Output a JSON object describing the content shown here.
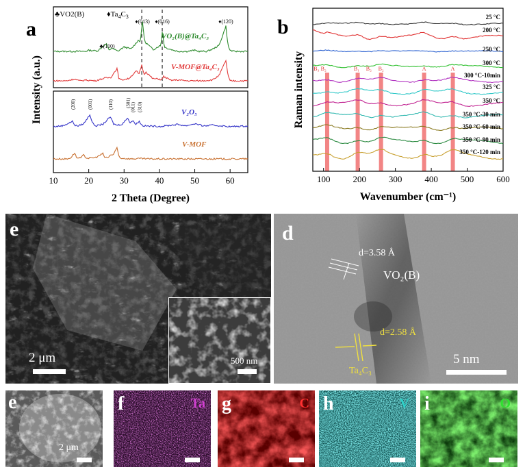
{
  "panels": {
    "a": "a",
    "b": "b",
    "c": "e",
    "d": "d",
    "e": "e",
    "f": "f",
    "g": "g",
    "h": "h",
    "i": "i"
  },
  "chart_data": [
    {
      "type": "line",
      "panel": "a",
      "xlabel": "2 Theta (Degree)",
      "ylabel": "Intensity (a.u.)",
      "xlim": [
        10,
        65
      ],
      "xticks": [
        10,
        20,
        30,
        40,
        50,
        60
      ],
      "legend": {
        "vo2": "♣VO2(B)",
        "ta4c3_sym": "♦Ta",
        "ta4c3_sub": "4",
        "ta4c3_rest": "C",
        "ta4c3_sub2": "3"
      },
      "series": [
        {
          "name": "VO2(B)@Ta4C3",
          "label": "VO₂(B)@Ta₄C₃",
          "color": "#2e8b2e",
          "x": [
            10,
            15,
            20,
            25,
            26.5,
            30,
            34,
            35.2,
            36.5,
            40,
            40.8,
            42,
            50,
            55,
            58.8,
            60,
            65
          ],
          "y": [
            0.5,
            0.5,
            0.6,
            1.2,
            0.8,
            0.9,
            1.5,
            3.2,
            1.2,
            1.0,
            2.3,
            0.8,
            0.6,
            0.7,
            2.8,
            0.6,
            0.5
          ]
        },
        {
          "name": "V-MOF@Ta4C3",
          "label": "V-MOF@Ta₄C₃",
          "color": "#e23c3c",
          "x": [
            10,
            16,
            19,
            24.5,
            28,
            29,
            33.5,
            35,
            36.2,
            40,
            41.2,
            45,
            55,
            58.8,
            60,
            65
          ],
          "y": [
            0.3,
            0.5,
            0.4,
            0.6,
            1.7,
            0.4,
            1.4,
            2.1,
            1.3,
            0.5,
            0.8,
            0.4,
            0.4,
            2.6,
            0.3,
            0.3
          ]
        },
        {
          "name": "V2O5",
          "label": "V₂O₅",
          "color": "#3434c8",
          "x": [
            10,
            15.4,
            17,
            20.3,
            22,
            26.1,
            28,
            31,
            32.4,
            34.3,
            36,
            45,
            50,
            55,
            65
          ],
          "y": [
            0.2,
            0.9,
            0.3,
            1.8,
            0.3,
            1.5,
            0.4,
            1.4,
            1.0,
            0.9,
            0.3,
            0.5,
            0.6,
            0.4,
            0.3
          ]
        },
        {
          "name": "V-MOF",
          "label": "V-MOF",
          "color": "#c87030",
          "x": [
            10,
            14,
            16,
            17,
            18.5,
            20,
            24,
            25,
            26,
            28,
            29,
            35,
            40,
            50,
            65
          ],
          "y": [
            0.1,
            0.1,
            0.9,
            0.2,
            0.6,
            0.2,
            0.8,
            0.3,
            0.6,
            1.6,
            0.2,
            0.15,
            0.1,
            0.1,
            0.1
          ]
        }
      ],
      "annotations": {
        "green": [
          "♣(110)",
          "♦(013)",
          "♦(016)",
          "♦(120)"
        ],
        "v2o5": [
          "(200)",
          "(001)",
          "(110)",
          "(301)",
          "(011)",
          "(310)"
        ]
      },
      "dashed_lines_x": [
        35,
        40.8
      ]
    },
    {
      "type": "line",
      "panel": "b",
      "xlabel": "Wavenumber (cm⁻¹)",
      "ylabel": "Raman intensity",
      "xlim": [
        70,
        600
      ],
      "xticks": [
        100,
        200,
        300,
        400,
        500,
        600
      ],
      "highlight_bands": [
        110,
        195,
        260,
        380,
        460
      ],
      "band_labels": [
        "B₃",
        "B₂",
        "B₁",
        "B₂",
        "B₂",
        "A",
        "A"
      ],
      "series": [
        {
          "name": "25 °C",
          "color": "#333333"
        },
        {
          "name": "200 °C",
          "color": "#e03030"
        },
        {
          "name": "250 °C",
          "color": "#2a60d0"
        },
        {
          "name": "300 °C",
          "color": "#30c030"
        },
        {
          "name": "300 °C-10min",
          "color": "#b030c0"
        },
        {
          "name": "325 °C",
          "color": "#30c8c8"
        },
        {
          "name": "350 °C",
          "color": "#c02090"
        },
        {
          "name": "350 °C-30 min",
          "color": "#30b8b0"
        },
        {
          "name": "350 °C-60 min",
          "color": "#8a7a20"
        },
        {
          "name": "350 °C-90 min",
          "color": "#2a8a40"
        },
        {
          "name": "350 °C-120 min",
          "color": "#c8a030"
        }
      ]
    }
  ],
  "micro": {
    "c_scale": "2 μm",
    "c_inset_scale": "500 nm",
    "d_spacing1": "d=3.58 Å",
    "d_phase1": "VO₂(B)",
    "d_spacing2": "d=2.58 Å",
    "d_phase2": "Ta₄C₃",
    "d_scale": "5 nm",
    "e_scale": "2 μm"
  },
  "maps": {
    "f": {
      "element": "Ta",
      "color": "#c040c0"
    },
    "g": {
      "element": "C",
      "color": "#ff3030"
    },
    "h": {
      "element": "V",
      "color": "#30d0c8"
    },
    "i": {
      "element": "O",
      "color": "#30e030"
    }
  }
}
